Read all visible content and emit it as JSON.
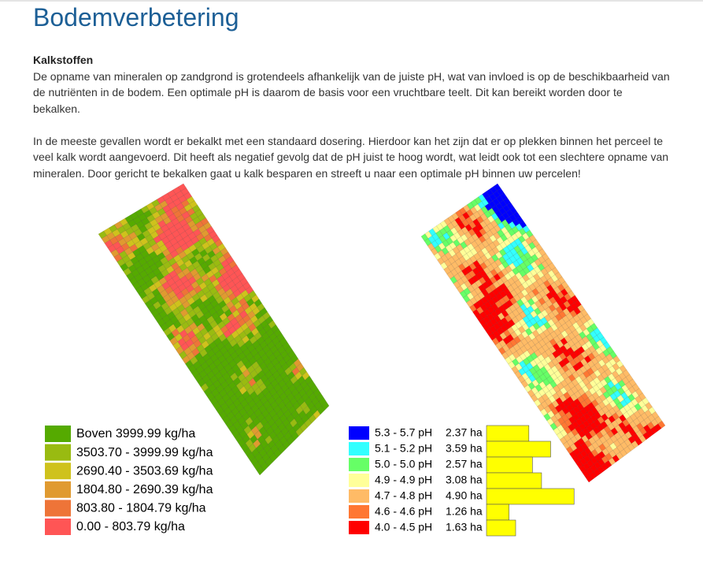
{
  "header": {
    "title": "Bodemverbetering"
  },
  "section": {
    "heading": "Kalkstoffen",
    "paragraphs": [
      "De opname van mineralen op zandgrond is grotendeels afhankelijk van de juiste pH, wat van invloed is op de beschikbaarheid van de nutriënten in de bodem. Een optimale pH is daarom de basis voor een vruchtbare teelt. Dit kan bereikt worden door te bekalken.",
      "In de meeste gevallen wordt er bekalkt met een standaard dosering. Hierdoor kan het zijn dat er op plekken binnen het perceel te veel kalk wordt aangevoerd. Dit heeft als negatief gevolg dat de pH juist te hoog wordt, wat leidt ook tot een slechtere opname van mineralen. Door gericht te bekalken gaat u kalk besparen en streeft u naar een optimale pH binnen uw percelen!"
    ]
  },
  "lime_map": {
    "legend": [
      {
        "label": "Boven 3999.99 kg/ha",
        "color": "#55aa00"
      },
      {
        "label": "3503.70 - 3999.99 kg/ha",
        "color": "#99bb11"
      },
      {
        "label": "2690.40 - 3503.69 kg/ha",
        "color": "#cfc21c"
      },
      {
        "label": "1804.80 - 2690.39 kg/ha",
        "color": "#e09a30"
      },
      {
        "label": "803.80 - 1804.79 kg/ha",
        "color": "#ee7438"
      },
      {
        "label": "0.00 - 803.79 kg/ha",
        "color": "#ff5555"
      }
    ]
  },
  "ph_map": {
    "categories": [
      "5.3 - 5.7 pH",
      "5.1 - 5.2 pH",
      "5.0 - 5.0 pH",
      "4.9 - 4.9 pH",
      "4.7 - 4.8 pH",
      "4.6 - 4.6 pH",
      "4.0 - 4.5 pH"
    ],
    "values": [
      2.37,
      3.59,
      2.57,
      3.08,
      4.9,
      1.26,
      1.63
    ],
    "value_labels": [
      "2.37 ha",
      "3.59 ha",
      "2.57 ha",
      "3.08 ha",
      "4.90 ha",
      "1.26 ha",
      "1.63 ha"
    ],
    "colors": [
      "#0000ff",
      "#33ffff",
      "#66ff66",
      "#ffff99",
      "#ffbb66",
      "#ff7733",
      "#ff0000"
    ],
    "bar_color": "#ffff00"
  }
}
